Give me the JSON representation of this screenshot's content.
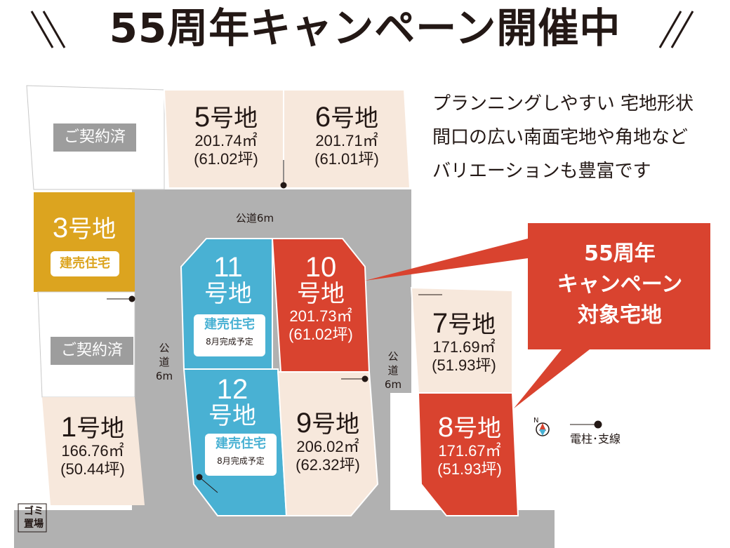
{
  "header": {
    "title": "55周年キャンペーン開催中"
  },
  "description": [
    "プランニングしやすい 宅地形状",
    "間口の広い南面宅地や角地など",
    "バリエーションも豊富です"
  ],
  "lots": {
    "lot5": {
      "name_num": "5",
      "name_suffix": "号地",
      "area": "201.74㎡",
      "tsubo": "(61.02坪)"
    },
    "lot6": {
      "name_num": "6",
      "name_suffix": "号地",
      "area": "201.71㎡",
      "tsubo": "(61.01坪)"
    },
    "lot3": {
      "name_num": "3",
      "name_suffix": "号地",
      "tag": "建売住宅"
    },
    "lot11": {
      "name_num": "11",
      "name_suffix": "号地",
      "tag": "建売住宅",
      "tag_sub": "8月完成予定"
    },
    "lot10": {
      "name_num": "10",
      "name_suffix": "号地",
      "area": "201.73㎡",
      "tsubo": "(61.02坪)"
    },
    "lot12": {
      "name_num": "12",
      "name_suffix": "号地",
      "tag": "建売住宅",
      "tag_sub": "8月完成予定"
    },
    "lot9": {
      "name_num": "9",
      "name_suffix": "号地",
      "area": "206.02㎡",
      "tsubo": "(62.32坪)"
    },
    "lot7": {
      "name_num": "7",
      "name_suffix": "号地",
      "area": "171.69㎡",
      "tsubo": "(51.93坪)"
    },
    "lot8": {
      "name_num": "8",
      "name_suffix": "号地",
      "area": "171.67㎡",
      "tsubo": "(51.93坪)"
    },
    "lot1": {
      "name_num": "1",
      "name_suffix": "号地",
      "area": "166.76㎡",
      "tsubo": "(50.44坪)"
    }
  },
  "sold_label": "ご契約済",
  "roads": {
    "top": "公道6m",
    "left_chars": [
      "公",
      "道",
      "6m"
    ],
    "right_chars": [
      "公",
      "道",
      "6m"
    ]
  },
  "garbage": {
    "line1": "ゴミ",
    "line2": "置場"
  },
  "callout": {
    "line1": "55周年",
    "line2": "キャンペーン",
    "line3": "対象宅地"
  },
  "legend": {
    "pole_label": "電柱･支線",
    "compass_icon": "north-compass-icon",
    "pole_icon": "utility-pole-icon"
  },
  "colors": {
    "beige": "#f7e8dc",
    "gold": "#dca41f",
    "blue": "#49b1d3",
    "red": "#d9432f",
    "road": "#b1b1b1",
    "sold_gray": "#9d9d9d"
  }
}
